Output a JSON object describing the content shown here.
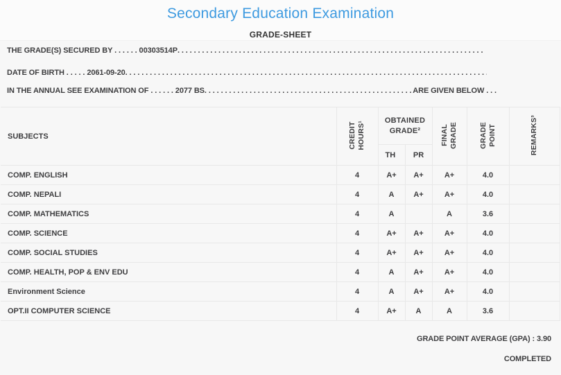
{
  "colors": {
    "accent": "#3d9ae0",
    "page_background": "#f7f7f7",
    "text": "#3d3d3f",
    "border": "#e8e8e8"
  },
  "masthead": {
    "title": "Secondary Education Examination",
    "subtitle": "GRADE-SHEET"
  },
  "info_lines": [
    {
      "prefix": "THE GRADE(S) SECURED BY . . . . . . 00303514P",
      "fill": " . . . . . . . . . . . . . . . . . . . . . . . . . . . . . . . . . . . . . . . . . . . . . . . . . . . . . . . . . . . . . . . . . . . . . . . . . . .",
      "suffix": ""
    },
    {
      "prefix": "DATE OF BIRTH . . . . . 2061-09-20",
      "fill": " . . . . . . . . . . . . . . . . . . . . . . . . . . . . . . . . . . . . . . . . . . . . . . . . . . . . . . . . . . . . . . . . . . . . . . . . . . . . . . . . . . . . . . . . . . . . . .",
      "suffix": ""
    },
    {
      "prefix": "IN THE ANNUAL SEE EXAMINATION OF . . . . . . 2077 BS",
      "fill": " . . . . . . . . . . . . . . . . . . . . . . . . . . . . . . . . . . . . . . . . . . . . . . . . . . . . . . . . . . . . . . . . . . . . . . ",
      "suffix": "ARE GIVEN BELOW . . ."
    }
  ],
  "table": {
    "headers": {
      "subjects": "SUBJECTS",
      "credit_hours": "CREDIT\nHOURS¹",
      "obtained_grade": "OBTAINED\nGRADE²",
      "th": "TH",
      "pr": "PR",
      "final_grade": "FINAL\nGRADE",
      "grade_point": "GRADE\nPOINT",
      "remarks": "REMARKS³"
    },
    "rows": [
      {
        "subject": "COMP. ENGLISH",
        "credit": "4",
        "th": "A+",
        "pr": "A+",
        "final": "A+",
        "point": "4.0",
        "remarks": ""
      },
      {
        "subject": "COMP. NEPALI",
        "credit": "4",
        "th": "A",
        "pr": "A+",
        "final": "A+",
        "point": "4.0",
        "remarks": ""
      },
      {
        "subject": "COMP. MATHEMATICS",
        "credit": "4",
        "th": "A",
        "pr": "",
        "final": "A",
        "point": "3.6",
        "remarks": ""
      },
      {
        "subject": "COMP. SCIENCE",
        "credit": "4",
        "th": "A+",
        "pr": "A+",
        "final": "A+",
        "point": "4.0",
        "remarks": ""
      },
      {
        "subject": "COMP. SOCIAL STUDIES",
        "credit": "4",
        "th": "A+",
        "pr": "A+",
        "final": "A+",
        "point": "4.0",
        "remarks": ""
      },
      {
        "subject": "COMP. HEALTH, POP & ENV EDU",
        "credit": "4",
        "th": "A",
        "pr": "A+",
        "final": "A+",
        "point": "4.0",
        "remarks": ""
      },
      {
        "subject": "Environment Science",
        "credit": "4",
        "th": "A",
        "pr": "A+",
        "final": "A+",
        "point": "4.0",
        "remarks": ""
      },
      {
        "subject": "OPT.II COMPUTER SCIENCE",
        "credit": "4",
        "th": "A+",
        "pr": "A",
        "final": "A",
        "point": "3.6",
        "remarks": ""
      }
    ]
  },
  "footer": {
    "gpa": "GRADE POINT AVERAGE (GPA) : 3.90",
    "status": "COMPLETED"
  }
}
